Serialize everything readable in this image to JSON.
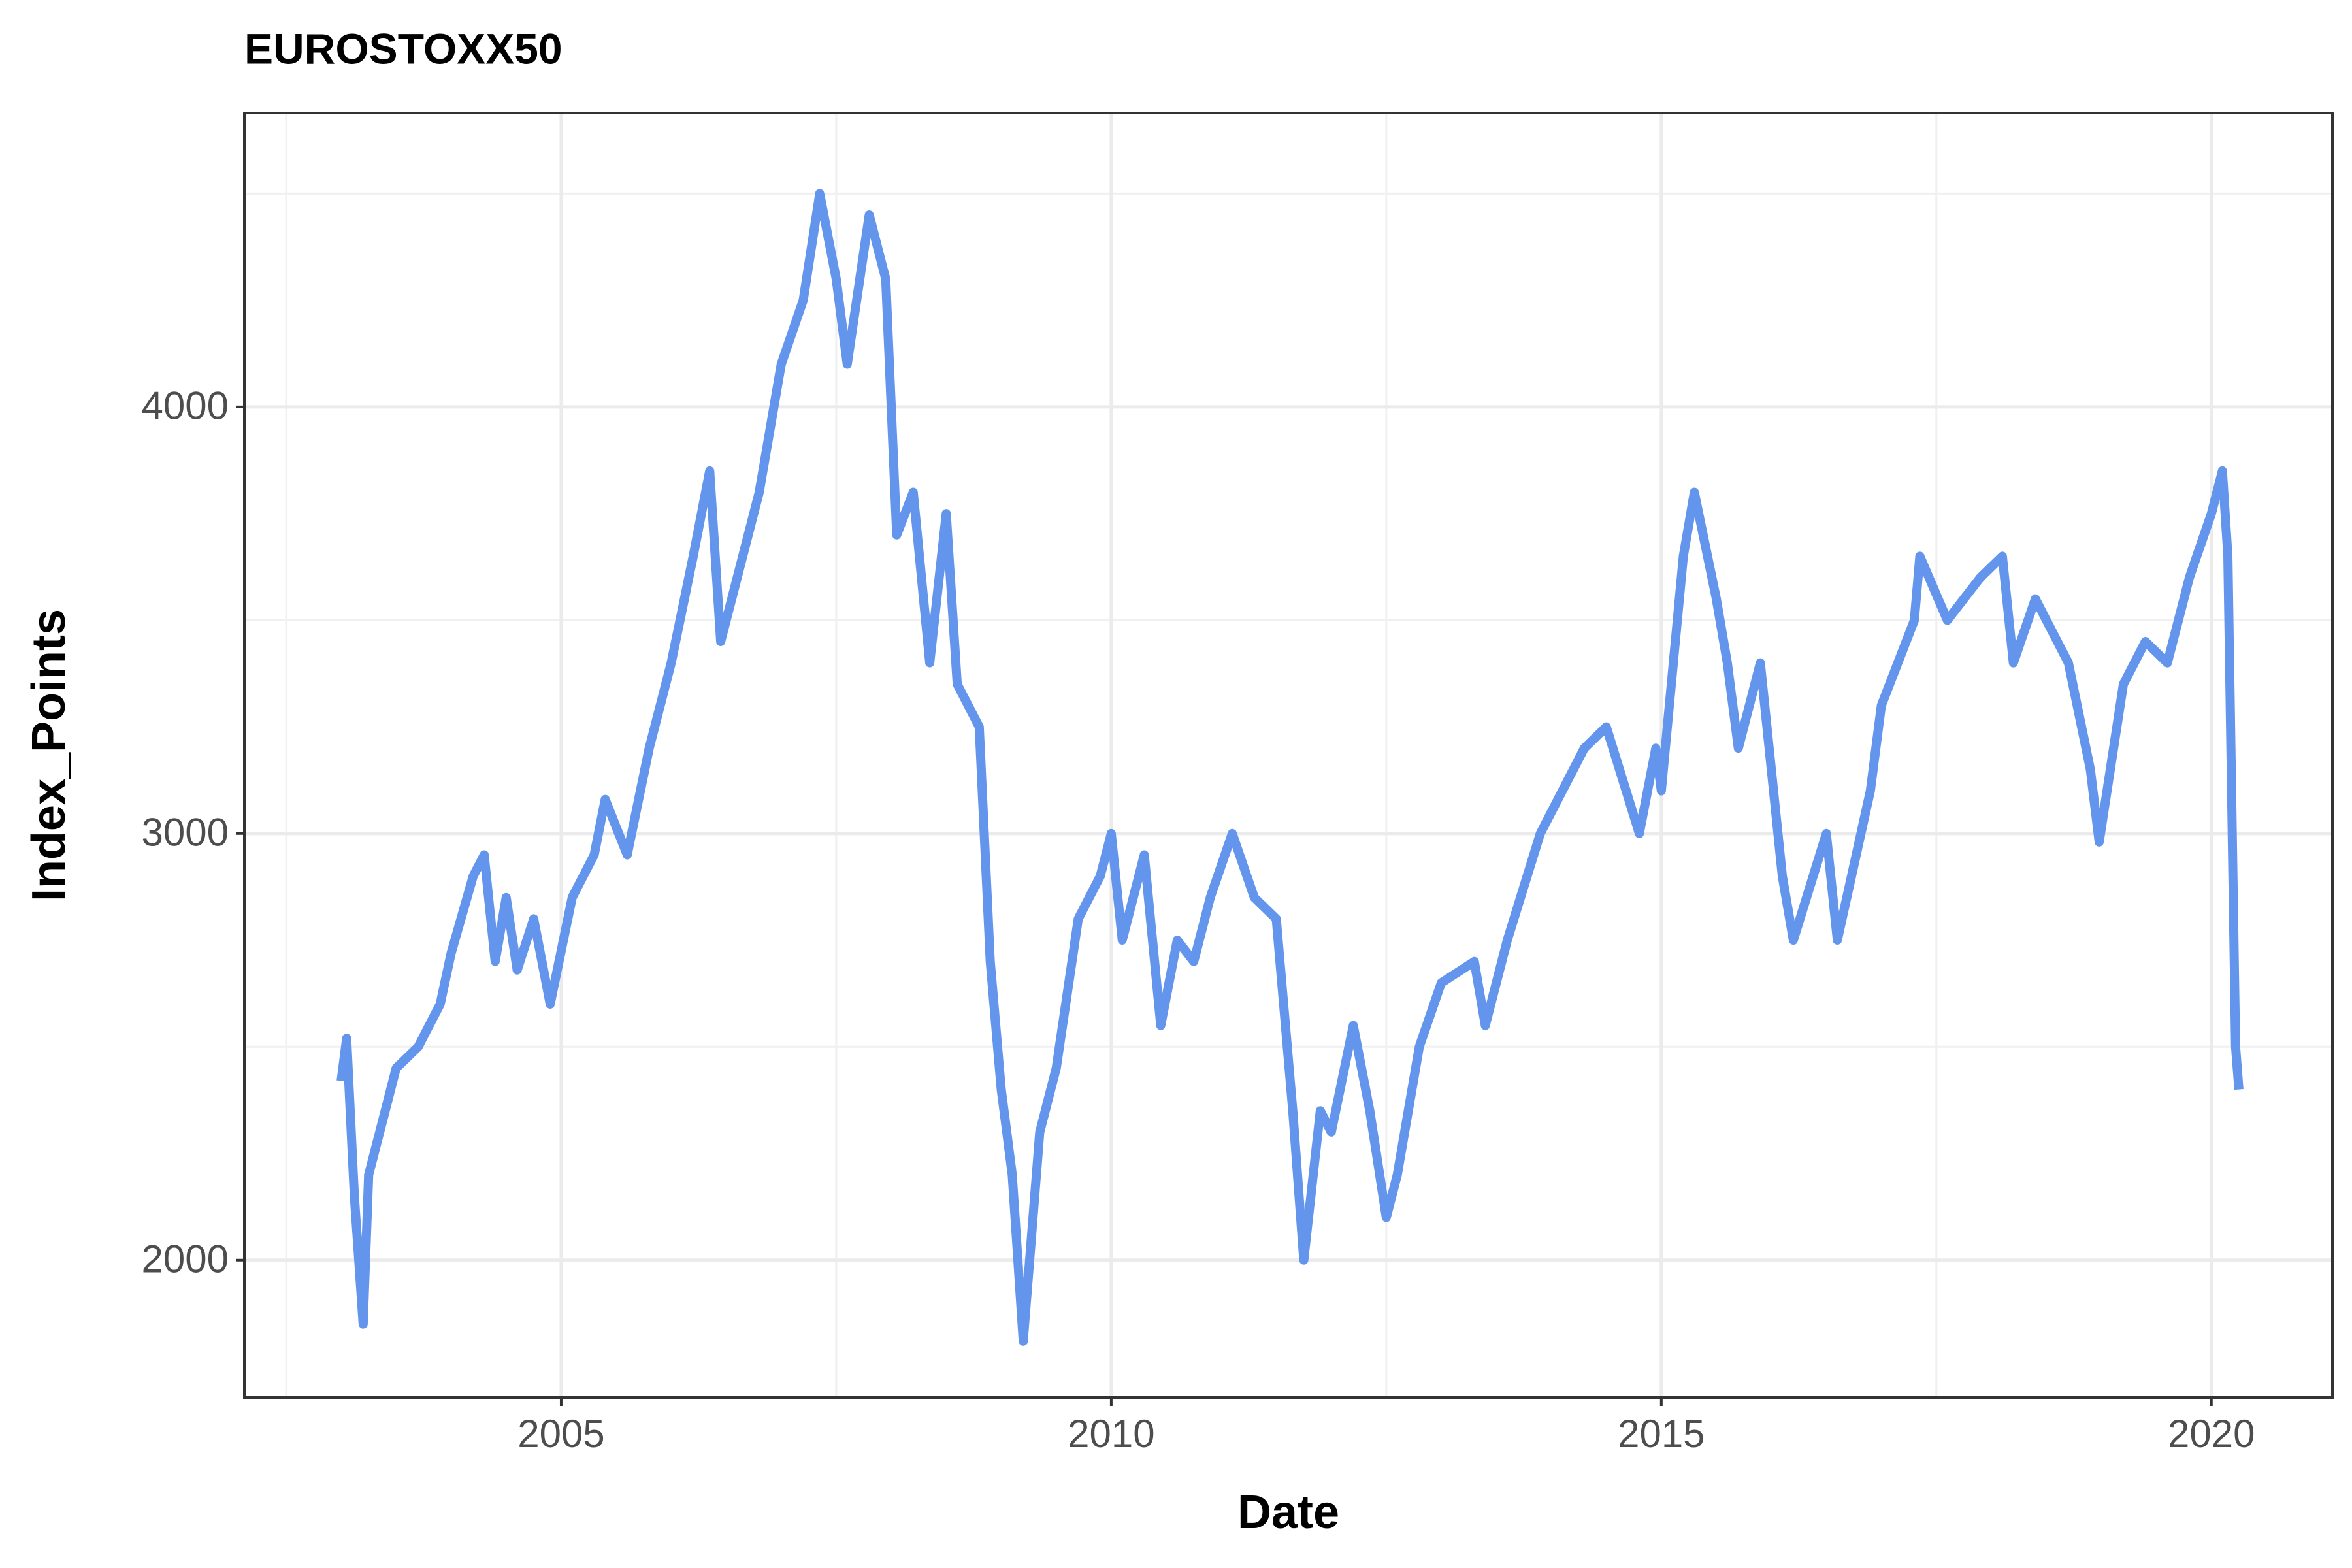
{
  "chart_data": {
    "type": "line",
    "title": "EUROSTOXX50",
    "x_label": "Date",
    "y_label": "Index_Points",
    "xlim": [
      2002.12,
      2021.1
    ],
    "ylim": [
      1678,
      4689
    ],
    "xticks": [
      2005,
      2010,
      2015,
      2020
    ],
    "yticks": [
      2000,
      3000,
      4000
    ],
    "xminor": [
      2002.5,
      2007.5,
      2012.5,
      2017.5
    ],
    "yminor": [
      2500,
      3500,
      4500
    ],
    "grid": true,
    "x": [
      2003.0,
      2003.05,
      2003.12,
      2003.2,
      2003.25,
      2003.35,
      2003.5,
      2003.7,
      2003.9,
      2004.0,
      2004.2,
      2004.3,
      2004.4,
      2004.5,
      2004.6,
      2004.75,
      2004.9,
      2005.1,
      2005.3,
      2005.4,
      2005.6,
      2005.8,
      2006.0,
      2006.2,
      2006.35,
      2006.45,
      2006.6,
      2006.8,
      2007.0,
      2007.2,
      2007.35,
      2007.5,
      2007.6,
      2007.8,
      2007.95,
      2008.05,
      2008.2,
      2008.35,
      2008.5,
      2008.6,
      2008.8,
      2008.9,
      2009.0,
      2009.1,
      2009.2,
      2009.35,
      2009.5,
      2009.7,
      2009.9,
      2010.0,
      2010.1,
      2010.3,
      2010.45,
      2010.6,
      2010.75,
      2010.9,
      2011.1,
      2011.3,
      2011.5,
      2011.65,
      2011.75,
      2011.9,
      2012.0,
      2012.2,
      2012.35,
      2012.5,
      2012.6,
      2012.8,
      2013.0,
      2013.3,
      2013.4,
      2013.6,
      2013.9,
      2014.1,
      2014.3,
      2014.5,
      2014.8,
      2014.95,
      2015.0,
      2015.2,
      2015.3,
      2015.5,
      2015.6,
      2015.7,
      2015.9,
      2016.1,
      2016.2,
      2016.5,
      2016.6,
      2016.9,
      2017.0,
      2017.3,
      2017.35,
      2017.6,
      2017.9,
      2018.1,
      2018.2,
      2018.4,
      2018.7,
      2018.9,
      2018.98,
      2019.2,
      2019.4,
      2019.6,
      2019.8,
      2020.0,
      2020.1,
      2020.15,
      2020.22,
      2020.25
    ],
    "series": [
      {
        "name": "EUROSTOXX50",
        "color": "#6495ED",
        "values": [
          2420,
          2520,
          2150,
          1850,
          2200,
          2300,
          2450,
          2500,
          2600,
          2720,
          2900,
          2950,
          2700,
          2850,
          2680,
          2800,
          2600,
          2850,
          2950,
          3080,
          2950,
          3200,
          3400,
          3650,
          3850,
          3450,
          3600,
          3800,
          4100,
          4250,
          4500,
          4300,
          4100,
          4450,
          4300,
          3700,
          3800,
          3400,
          3750,
          3350,
          3250,
          2700,
          2400,
          2200,
          1810,
          2300,
          2450,
          2800,
          2900,
          3000,
          2750,
          2950,
          2550,
          2750,
          2700,
          2850,
          3000,
          2850,
          2800,
          2350,
          2000,
          2350,
          2300,
          2550,
          2350,
          2100,
          2200,
          2500,
          2650,
          2700,
          2550,
          2750,
          3000,
          3100,
          3200,
          3250,
          3000,
          3200,
          3100,
          3650,
          3800,
          3550,
          3400,
          3200,
          3400,
          2900,
          2750,
          3000,
          2750,
          3100,
          3300,
          3500,
          3650,
          3500,
          3600,
          3650,
          3400,
          3550,
          3400,
          3150,
          2980,
          3350,
          3450,
          3400,
          3600,
          3750,
          3850,
          3650,
          2500,
          2400
        ]
      }
    ]
  }
}
